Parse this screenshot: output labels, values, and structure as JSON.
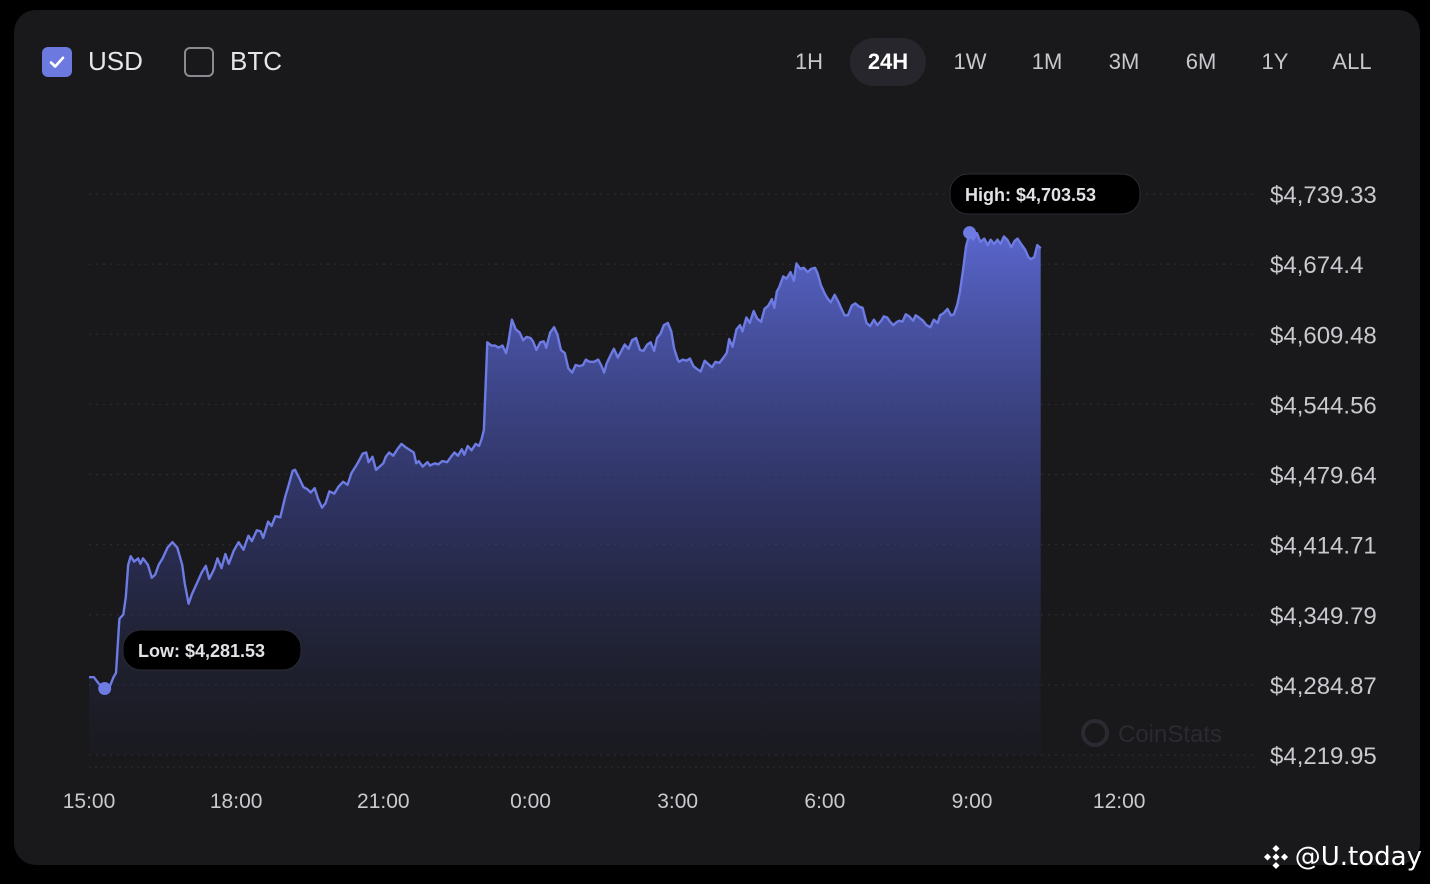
{
  "currency_toggle": {
    "usd": {
      "label": "USD",
      "checked": true
    },
    "btc": {
      "label": "BTC",
      "checked": false
    }
  },
  "time_ranges": [
    {
      "label": "1H",
      "active": false
    },
    {
      "label": "24H",
      "active": true
    },
    {
      "label": "1W",
      "active": false
    },
    {
      "label": "1M",
      "active": false
    },
    {
      "label": "3M",
      "active": false
    },
    {
      "label": "6M",
      "active": false
    },
    {
      "label": "1Y",
      "active": false
    },
    {
      "label": "ALL",
      "active": false
    }
  ],
  "colors": {
    "line": "#6d7be3",
    "area_top": "#5d6ad6",
    "background": "#19191c",
    "checkbox_accent": "#6c7ae0"
  },
  "watermark": {
    "icon": "coinstats-logo-icon",
    "text": "CoinStats"
  },
  "branding": {
    "icon": "binance-logo-icon",
    "text": "@U.today"
  },
  "chart_data": {
    "type": "area",
    "ylim": [
      4219.95,
      4739.33
    ],
    "y_ticks": [
      "$4,739.33",
      "$4,674.4",
      "$4,609.48",
      "$4,544.56",
      "$4,479.64",
      "$4,414.71",
      "$4,349.79",
      "$4,284.87",
      "$4,219.95"
    ],
    "y_tick_values": [
      4739.33,
      4674.4,
      4609.48,
      4544.56,
      4479.64,
      4414.71,
      4349.79,
      4284.87,
      4219.95
    ],
    "x_ticks": [
      "15:00",
      "18:00",
      "21:00",
      "0:00",
      "3:00",
      "6:00",
      "9:00",
      "12:00"
    ],
    "x_tick_hours": [
      0,
      3,
      6,
      9,
      12,
      15,
      18,
      21
    ],
    "x_range_hours": [
      0,
      23.85
    ],
    "series": [
      {
        "points": [
          [
            0.0,
            4292
          ],
          [
            0.1,
            4292
          ],
          [
            0.2,
            4286
          ],
          [
            0.32,
            4282
          ],
          [
            0.42,
            4283
          ],
          [
            0.5,
            4292
          ],
          [
            0.55,
            4296
          ],
          [
            0.62,
            4346
          ],
          [
            0.7,
            4350
          ],
          [
            0.75,
            4366
          ],
          [
            0.8,
            4396
          ],
          [
            0.85,
            4404
          ],
          [
            0.92,
            4399
          ],
          [
            1.0,
            4402
          ],
          [
            1.05,
            4397
          ],
          [
            1.1,
            4402
          ],
          [
            1.2,
            4396
          ],
          [
            1.28,
            4384
          ],
          [
            1.35,
            4387
          ],
          [
            1.42,
            4396
          ],
          [
            1.5,
            4402
          ],
          [
            1.6,
            4412
          ],
          [
            1.7,
            4417
          ],
          [
            1.8,
            4412
          ],
          [
            1.9,
            4396
          ],
          [
            1.95,
            4379
          ],
          [
            2.03,
            4360
          ],
          [
            2.1,
            4369
          ],
          [
            2.2,
            4379
          ],
          [
            2.3,
            4389
          ],
          [
            2.38,
            4395
          ],
          [
            2.45,
            4383
          ],
          [
            2.55,
            4392
          ],
          [
            2.62,
            4402
          ],
          [
            2.7,
            4393
          ],
          [
            2.78,
            4406
          ],
          [
            2.85,
            4397
          ],
          [
            2.95,
            4409
          ],
          [
            3.05,
            4417
          ],
          [
            3.15,
            4410
          ],
          [
            3.25,
            4423
          ],
          [
            3.32,
            4418
          ],
          [
            3.42,
            4428
          ],
          [
            3.5,
            4427
          ],
          [
            3.55,
            4421
          ],
          [
            3.65,
            4436
          ],
          [
            3.72,
            4432
          ],
          [
            3.8,
            4441
          ],
          [
            3.9,
            4440
          ],
          [
            4.0,
            4459
          ],
          [
            4.07,
            4470
          ],
          [
            4.15,
            4483
          ],
          [
            4.2,
            4484
          ],
          [
            4.3,
            4475
          ],
          [
            4.37,
            4468
          ],
          [
            4.45,
            4466
          ],
          [
            4.52,
            4463
          ],
          [
            4.6,
            4467
          ],
          [
            4.67,
            4457
          ],
          [
            4.75,
            4449
          ],
          [
            4.82,
            4453
          ],
          [
            4.9,
            4464
          ],
          [
            5.0,
            4462
          ],
          [
            5.08,
            4468
          ],
          [
            5.18,
            4473
          ],
          [
            5.27,
            4470
          ],
          [
            5.35,
            4481
          ],
          [
            5.42,
            4486
          ],
          [
            5.5,
            4492
          ],
          [
            5.58,
            4499
          ],
          [
            5.65,
            4500
          ],
          [
            5.7,
            4491
          ],
          [
            5.78,
            4496
          ],
          [
            5.85,
            4484
          ],
          [
            5.95,
            4488
          ],
          [
            6.0,
            4490
          ],
          [
            6.05,
            4496
          ],
          [
            6.12,
            4500
          ],
          [
            6.2,
            4497
          ],
          [
            6.3,
            4504
          ],
          [
            6.37,
            4508
          ],
          [
            6.45,
            4505
          ],
          [
            6.55,
            4502
          ],
          [
            6.62,
            4500
          ],
          [
            6.67,
            4490
          ],
          [
            6.72,
            4492
          ],
          [
            6.8,
            4487
          ],
          [
            6.9,
            4491
          ],
          [
            6.95,
            4488
          ],
          [
            7.05,
            4490
          ],
          [
            7.12,
            4489
          ],
          [
            7.2,
            4492
          ],
          [
            7.3,
            4491
          ],
          [
            7.38,
            4496
          ],
          [
            7.45,
            4500
          ],
          [
            7.52,
            4497
          ],
          [
            7.6,
            4503
          ],
          [
            7.65,
            4498
          ],
          [
            7.72,
            4506
          ],
          [
            7.8,
            4502
          ],
          [
            7.88,
            4508
          ],
          [
            7.95,
            4506
          ],
          [
            8.0,
            4512
          ],
          [
            8.05,
            4521
          ],
          [
            8.12,
            4602
          ],
          [
            8.2,
            4599
          ],
          [
            8.28,
            4599
          ],
          [
            8.35,
            4597
          ],
          [
            8.43,
            4599
          ],
          [
            8.5,
            4592
          ],
          [
            8.55,
            4602
          ],
          [
            8.62,
            4623
          ],
          [
            8.7,
            4614
          ],
          [
            8.78,
            4611
          ],
          [
            8.85,
            4604
          ],
          [
            8.92,
            4607
          ],
          [
            9.0,
            4606
          ],
          [
            9.05,
            4603
          ],
          [
            9.12,
            4595
          ],
          [
            9.2,
            4602
          ],
          [
            9.27,
            4603
          ],
          [
            9.32,
            4597
          ],
          [
            9.4,
            4611
          ],
          [
            9.48,
            4616
          ],
          [
            9.55,
            4609
          ],
          [
            9.62,
            4595
          ],
          [
            9.7,
            4592
          ],
          [
            9.77,
            4578
          ],
          [
            9.85,
            4574
          ],
          [
            9.92,
            4581
          ],
          [
            10.0,
            4580
          ],
          [
            10.07,
            4581
          ],
          [
            10.13,
            4586
          ],
          [
            10.2,
            4584
          ],
          [
            10.3,
            4584
          ],
          [
            10.38,
            4586
          ],
          [
            10.45,
            4580
          ],
          [
            10.5,
            4574
          ],
          [
            10.55,
            4582
          ],
          [
            10.63,
            4590
          ],
          [
            10.7,
            4596
          ],
          [
            10.78,
            4588
          ],
          [
            10.85,
            4594
          ],
          [
            10.92,
            4600
          ],
          [
            11.0,
            4596
          ],
          [
            11.07,
            4604
          ],
          [
            11.15,
            4606
          ],
          [
            11.23,
            4595
          ],
          [
            11.3,
            4594
          ],
          [
            11.38,
            4600
          ],
          [
            11.45,
            4602
          ],
          [
            11.52,
            4594
          ],
          [
            11.58,
            4606
          ],
          [
            11.65,
            4610
          ],
          [
            11.72,
            4618
          ],
          [
            11.8,
            4620
          ],
          [
            11.87,
            4612
          ],
          [
            11.93,
            4596
          ],
          [
            12.0,
            4586
          ],
          [
            12.03,
            4584
          ],
          [
            12.1,
            4586
          ],
          [
            12.18,
            4585
          ],
          [
            12.25,
            4587
          ],
          [
            12.32,
            4580
          ],
          [
            12.4,
            4577
          ],
          [
            12.47,
            4575
          ],
          [
            12.55,
            4585
          ],
          [
            12.62,
            4582
          ],
          [
            12.7,
            4579
          ],
          [
            12.77,
            4584
          ],
          [
            12.85,
            4583
          ],
          [
            12.92,
            4587
          ],
          [
            13.0,
            4592
          ],
          [
            13.05,
            4605
          ],
          [
            13.12,
            4598
          ],
          [
            13.2,
            4614
          ],
          [
            13.27,
            4618
          ],
          [
            13.32,
            4612
          ],
          [
            13.4,
            4625
          ],
          [
            13.47,
            4620
          ],
          [
            13.55,
            4631
          ],
          [
            13.62,
            4624
          ],
          [
            13.7,
            4621
          ],
          [
            13.77,
            4633
          ],
          [
            13.85,
            4636
          ],
          [
            13.92,
            4642
          ],
          [
            13.97,
            4634
          ],
          [
            14.02,
            4649
          ],
          [
            14.07,
            4653
          ],
          [
            14.15,
            4663
          ],
          [
            14.22,
            4661
          ],
          [
            14.3,
            4667
          ],
          [
            14.37,
            4659
          ],
          [
            14.42,
            4675
          ],
          [
            14.5,
            4670
          ],
          [
            14.57,
            4671
          ],
          [
            14.65,
            4667
          ],
          [
            14.72,
            4670
          ],
          [
            14.8,
            4671
          ],
          [
            14.85,
            4666
          ],
          [
            14.92,
            4655
          ],
          [
            15.0,
            4647
          ],
          [
            15.05,
            4643
          ],
          [
            15.12,
            4639
          ],
          [
            15.2,
            4646
          ],
          [
            15.27,
            4640
          ],
          [
            15.33,
            4634
          ],
          [
            15.4,
            4627
          ],
          [
            15.47,
            4627
          ],
          [
            15.55,
            4636
          ],
          [
            15.62,
            4638
          ],
          [
            15.7,
            4635
          ],
          [
            15.77,
            4634
          ],
          [
            15.85,
            4620
          ],
          [
            15.92,
            4617
          ],
          [
            16.0,
            4623
          ],
          [
            16.07,
            4618
          ],
          [
            16.15,
            4622
          ],
          [
            16.2,
            4626
          ],
          [
            16.27,
            4625
          ],
          [
            16.33,
            4621
          ],
          [
            16.4,
            4618
          ],
          [
            16.47,
            4621
          ],
          [
            16.52,
            4622
          ],
          [
            16.58,
            4621
          ],
          [
            16.65,
            4628
          ],
          [
            16.72,
            4626
          ],
          [
            16.8,
            4622
          ],
          [
            16.85,
            4627
          ],
          [
            16.92,
            4625
          ],
          [
            17.0,
            4622
          ],
          [
            17.07,
            4618
          ],
          [
            17.15,
            4616
          ],
          [
            17.22,
            4623
          ],
          [
            17.3,
            4620
          ],
          [
            17.35,
            4627
          ],
          [
            17.42,
            4629
          ],
          [
            17.5,
            4633
          ],
          [
            17.57,
            4627
          ],
          [
            17.63,
            4628
          ],
          [
            17.7,
            4637
          ],
          [
            17.75,
            4648
          ],
          [
            17.82,
            4670
          ],
          [
            17.88,
            4691
          ],
          [
            17.95,
            4703
          ],
          [
            18.02,
            4697
          ],
          [
            18.1,
            4703
          ],
          [
            18.17,
            4695
          ],
          [
            18.25,
            4698
          ],
          [
            18.32,
            4692
          ],
          [
            18.38,
            4697
          ],
          [
            18.45,
            4693
          ],
          [
            18.52,
            4697
          ],
          [
            18.58,
            4693
          ],
          [
            18.65,
            4700
          ],
          [
            18.72,
            4697
          ],
          [
            18.8,
            4690
          ],
          [
            18.87,
            4696
          ],
          [
            18.93,
            4698
          ],
          [
            19.0,
            4693
          ],
          [
            19.08,
            4688
          ],
          [
            19.15,
            4681
          ],
          [
            19.2,
            4679
          ],
          [
            19.27,
            4681
          ],
          [
            19.33,
            4692
          ],
          [
            19.4,
            4689
          ]
        ]
      }
    ],
    "annotations": {
      "high": {
        "label": "High: $4,703.53",
        "x": 17.95,
        "y": 4703.53
      },
      "low": {
        "label": "Low: $4,281.53",
        "x": 0.32,
        "y": 4281.53
      }
    }
  }
}
